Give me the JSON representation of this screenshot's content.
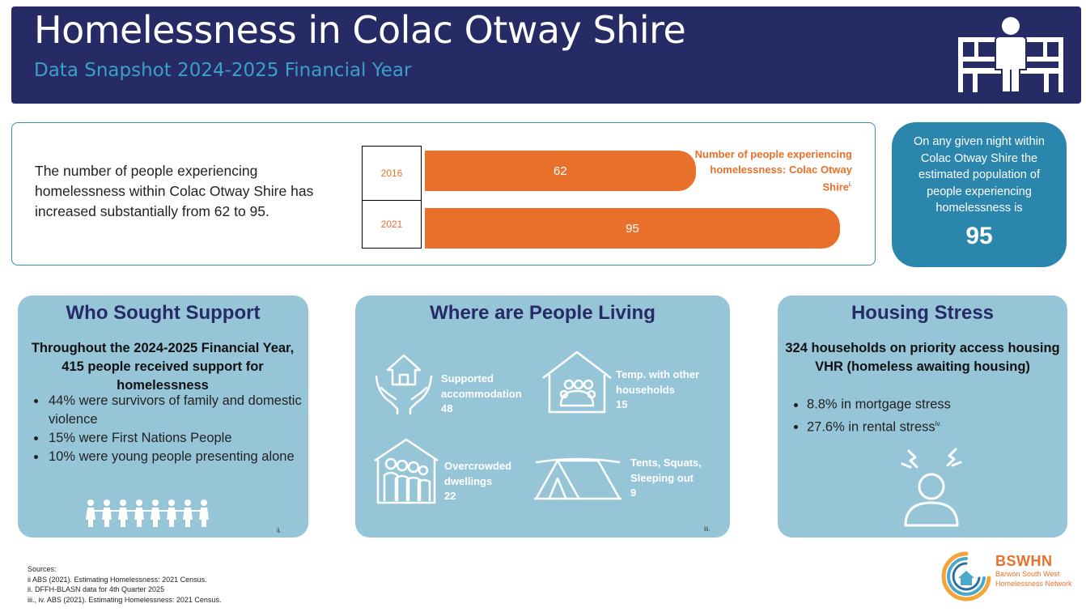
{
  "header": {
    "title": "Homelessness in Colac Otway Shire",
    "subtitle": "Data Snapshot 2024-2025 Financial Year",
    "icon": "person-on-bench-icon"
  },
  "trend": {
    "text": "The number of people experiencing homelessness within Colac Otway Shire has increased substantially from 62 to 95."
  },
  "chart_data": {
    "type": "bar",
    "orientation": "horizontal",
    "categories": [
      "2016",
      "2021"
    ],
    "values": [
      62,
      95
    ],
    "value_labels": [
      "62",
      "95"
    ],
    "legend": "Number of people experiencing homelessness: Colac Otway Shire",
    "legend_note": "i.",
    "xlim": [
      0,
      100
    ],
    "bar_color": "#e8702a"
  },
  "night": {
    "text": "On any given night within Colac Otway Shire the estimated population of people experiencing homelessness is",
    "value": "95"
  },
  "support": {
    "title": "Who Sought Support",
    "lead": "Throughout the 2024-2025 Financial Year, 415 people received support for homelessness",
    "items": [
      "44% were survivors of family and domestic violence",
      "15% were First Nations People",
      "10% were young people presenting alone"
    ],
    "footnote": "ii.",
    "icon": "people-row-icon"
  },
  "living": {
    "title": "Where are People Living",
    "items": [
      {
        "label": "Supported accommodation",
        "value": "48",
        "icon": "house-in-hands-icon"
      },
      {
        "label": "Temp. with other households",
        "value": "15",
        "icon": "shared-house-icon"
      },
      {
        "label": "Overcrowded dwellings",
        "value": "22",
        "icon": "crowded-house-icon"
      },
      {
        "label": "Tents, Squats, Sleeping out",
        "value": "9",
        "icon": "tent-icon"
      }
    ],
    "footnote": "iii."
  },
  "stress": {
    "title": "Housing Stress",
    "lead": "324 households on priority access housing VHR (homeless awaiting housing)",
    "items": [
      {
        "text": "8.8% in mortgage stress",
        "note": ""
      },
      {
        "text": "27.6% in rental stress",
        "note": "iv."
      }
    ],
    "icon": "stressed-person-icon"
  },
  "sources": {
    "heading": "Sources:",
    "lines": [
      "ii ABS (2021). Estimating Homelessness: 2021 Census.",
      "ii. DFFH-BLASN data for 4th Quarter 2025",
      "iii., iv. ABS (2021). Estimating Homelessness: 2021 Census."
    ]
  },
  "logo": {
    "name": "BSWHN",
    "subtitle": "Barwon South West Homelessness Network"
  },
  "colors": {
    "navy": "#262b66",
    "orange": "#e8702a",
    "teal": "#2a86ad",
    "card": "#97c5d8"
  }
}
